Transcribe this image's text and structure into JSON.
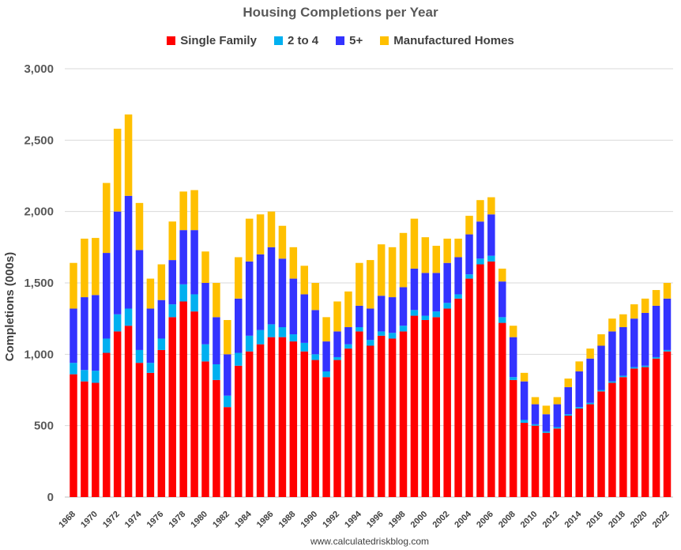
{
  "chart_data": {
    "type": "bar",
    "stacked": true,
    "title": "Housing Completions per Year",
    "ylabel": "Completions (000s)",
    "xlabel": "",
    "ylim": [
      0,
      3000
    ],
    "yticks": [
      0,
      500,
      1000,
      1500,
      2000,
      2500,
      3000
    ],
    "ytick_labels": [
      "0",
      "500",
      "1,000",
      "1,500",
      "2,000",
      "2,500",
      "3,000"
    ],
    "grid": true,
    "legend_position": "top",
    "source": "www.calculatedriskblog.com",
    "categories": [
      "1968",
      "1969",
      "1970",
      "1971",
      "1972",
      "1973",
      "1974",
      "1975",
      "1976",
      "1977",
      "1978",
      "1979",
      "1980",
      "1981",
      "1982",
      "1983",
      "1984",
      "1985",
      "1986",
      "1987",
      "1988",
      "1989",
      "1990",
      "1991",
      "1992",
      "1993",
      "1994",
      "1995",
      "1996",
      "1997",
      "1998",
      "1999",
      "2000",
      "2001",
      "2002",
      "2003",
      "2004",
      "2005",
      "2006",
      "2007",
      "2008",
      "2009",
      "2010",
      "2011",
      "2012",
      "2013",
      "2014",
      "2015",
      "2016",
      "2017",
      "2018",
      "2019",
      "2020",
      "2021",
      "2022"
    ],
    "xtick_labels": [
      "1968",
      "1970",
      "1972",
      "1974",
      "1976",
      "1978",
      "1980",
      "1982",
      "1984",
      "1986",
      "1988",
      "1990",
      "1992",
      "1994",
      "1996",
      "1998",
      "2000",
      "2002",
      "2004",
      "2006",
      "2008",
      "2010",
      "2012",
      "2014",
      "2016",
      "2018",
      "2020",
      "2022"
    ],
    "series": [
      {
        "name": "Single Family",
        "color": "#ff0000",
        "values": [
          860,
          810,
          800,
          1010,
          1160,
          1200,
          940,
          870,
          1030,
          1260,
          1370,
          1300,
          950,
          820,
          630,
          920,
          1020,
          1070,
          1120,
          1120,
          1090,
          1020,
          960,
          840,
          960,
          1040,
          1160,
          1060,
          1130,
          1110,
          1160,
          1270,
          1240,
          1260,
          1320,
          1390,
          1530,
          1630,
          1650,
          1220,
          820,
          520,
          500,
          450,
          480,
          570,
          620,
          650,
          740,
          800,
          840,
          900,
          910,
          970,
          1020
        ]
      },
      {
        "name": "2 to 4",
        "color": "#00b0f0",
        "values": [
          80,
          80,
          85,
          100,
          120,
          120,
          90,
          70,
          80,
          90,
          120,
          120,
          120,
          110,
          80,
          90,
          110,
          100,
          90,
          70,
          50,
          60,
          40,
          40,
          20,
          30,
          30,
          40,
          30,
          40,
          40,
          40,
          30,
          40,
          40,
          30,
          30,
          40,
          40,
          40,
          20,
          20,
          10,
          10,
          10,
          10,
          10,
          10,
          10,
          10,
          10,
          10,
          10,
          10,
          10
        ]
      },
      {
        "name": "5+",
        "color": "#3333ff",
        "values": [
          380,
          510,
          530,
          600,
          720,
          790,
          700,
          380,
          270,
          310,
          380,
          450,
          430,
          330,
          290,
          380,
          520,
          530,
          540,
          480,
          390,
          340,
          310,
          210,
          180,
          120,
          150,
          220,
          250,
          250,
          270,
          290,
          300,
          270,
          280,
          260,
          280,
          260,
          290,
          250,
          280,
          270,
          140,
          120,
          160,
          190,
          250,
          310,
          310,
          350,
          340,
          340,
          370,
          360,
          360
        ]
      },
      {
        "name": "Manufactured Homes",
        "color": "#ffc000",
        "values": [
          320,
          410,
          400,
          490,
          580,
          570,
          330,
          210,
          250,
          270,
          270,
          280,
          220,
          240,
          240,
          290,
          300,
          280,
          250,
          230,
          220,
          200,
          190,
          170,
          210,
          250,
          300,
          340,
          360,
          350,
          380,
          350,
          250,
          190,
          170,
          130,
          130,
          150,
          120,
          90,
          80,
          60,
          50,
          60,
          50,
          60,
          70,
          70,
          80,
          90,
          90,
          100,
          100,
          110,
          110
        ]
      }
    ]
  }
}
